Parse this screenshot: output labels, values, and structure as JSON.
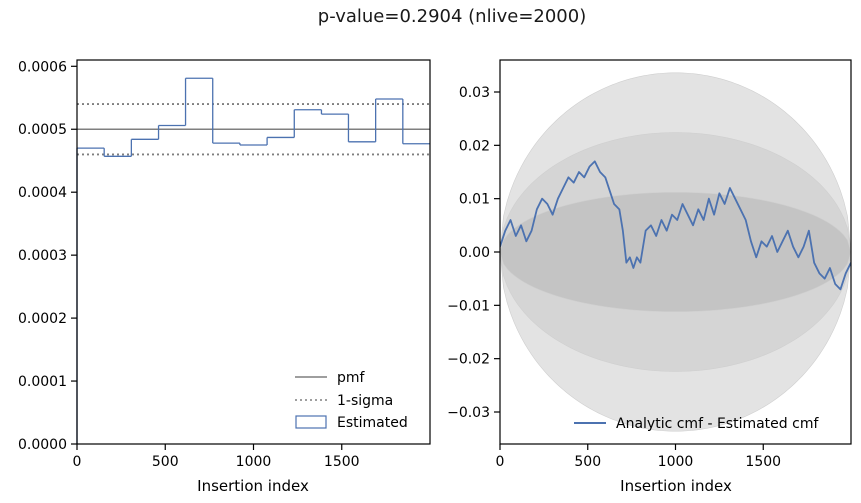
{
  "title": "p-value=0.2904 (nlive=2000)",
  "chart_data": [
    {
      "type": "step-histogram",
      "xlabel": "Insertion index",
      "ylabel": "",
      "xlim": [
        0,
        2000
      ],
      "ylim": [
        0,
        0.00061
      ],
      "xticks": [
        0,
        500,
        1000,
        1500
      ],
      "xtick_labels": [
        "0",
        "500",
        "1000",
        "1500"
      ],
      "yticks": [
        0,
        0.0001,
        0.0002,
        0.0003,
        0.0004,
        0.0005,
        0.0006
      ],
      "ytick_labels": [
        "0.0000",
        "0.0001",
        "0.0002",
        "0.0003",
        "0.0004",
        "0.0005",
        "0.0006"
      ],
      "pmf": 0.0005,
      "sigma_band": [
        0.00046,
        0.00054
      ],
      "bin_edges": [
        0,
        154,
        308,
        462,
        615,
        769,
        923,
        1077,
        1231,
        1385,
        1538,
        1692,
        1846,
        2000
      ],
      "values": [
        0.00047,
        0.000457,
        0.000484,
        0.000506,
        0.000581,
        0.000478,
        0.000475,
        0.000487,
        0.000531,
        0.000524,
        0.00048,
        0.000548,
        0.000477
      ],
      "legend": [
        "pmf",
        "1-sigma",
        "Estimated"
      ],
      "legend_position": "lower-right",
      "colors": {
        "pmf": "#7f7f7f",
        "sigma": "#7f7f7f",
        "estimated": "#4c72b0"
      }
    },
    {
      "type": "line",
      "xlabel": "Insertion index",
      "ylabel": "",
      "xlim": [
        0,
        2000
      ],
      "ylim": [
        -0.036,
        0.036
      ],
      "xticks": [
        0,
        500,
        1000,
        1500
      ],
      "xtick_labels": [
        "0",
        "500",
        "1000",
        "1500"
      ],
      "yticks": [
        -0.03,
        -0.02,
        -0.01,
        0.0,
        0.01,
        0.02,
        0.03
      ],
      "ytick_labels": [
        "−0.03",
        "−0.02",
        "−0.01",
        "0.00",
        "0.01",
        "0.02",
        "0.03"
      ],
      "sigma_band_amplitudes": [
        0.0112,
        0.0224,
        0.0336
      ],
      "series": [
        {
          "name": "Analytic cmf - Estimated cmf",
          "x": [
            0,
            30,
            60,
            90,
            120,
            150,
            180,
            210,
            240,
            270,
            300,
            330,
            360,
            390,
            420,
            450,
            480,
            510,
            540,
            570,
            600,
            630,
            650,
            680,
            700,
            720,
            740,
            760,
            780,
            800,
            830,
            860,
            890,
            920,
            950,
            980,
            1010,
            1040,
            1070,
            1100,
            1130,
            1160,
            1190,
            1220,
            1250,
            1280,
            1310,
            1340,
            1370,
            1400,
            1430,
            1460,
            1490,
            1520,
            1550,
            1580,
            1610,
            1640,
            1670,
            1700,
            1730,
            1760,
            1790,
            1820,
            1850,
            1880,
            1910,
            1940,
            1970,
            2000
          ],
          "y": [
            0.001,
            0.004,
            0.006,
            0.003,
            0.005,
            0.002,
            0.004,
            0.008,
            0.01,
            0.009,
            0.007,
            0.01,
            0.012,
            0.014,
            0.013,
            0.015,
            0.014,
            0.016,
            0.017,
            0.015,
            0.014,
            0.011,
            0.009,
            0.008,
            0.004,
            -0.002,
            -0.001,
            -0.003,
            -0.001,
            -0.002,
            0.004,
            0.005,
            0.003,
            0.006,
            0.004,
            0.007,
            0.006,
            0.009,
            0.007,
            0.005,
            0.008,
            0.006,
            0.01,
            0.007,
            0.011,
            0.009,
            0.012,
            0.01,
            0.008,
            0.006,
            0.002,
            -0.001,
            0.002,
            0.001,
            0.003,
            0.0,
            0.002,
            0.004,
            0.001,
            -0.001,
            0.001,
            0.004,
            -0.002,
            -0.004,
            -0.005,
            -0.003,
            -0.006,
            -0.007,
            -0.004,
            -0.002
          ]
        }
      ],
      "legend_position": "lower-right",
      "colors": {
        "line": "#4c72b0",
        "band_outer": "#e3e3e3",
        "band_mid": "#d5d5d5",
        "band_inner": "#c4c4c4"
      }
    }
  ]
}
